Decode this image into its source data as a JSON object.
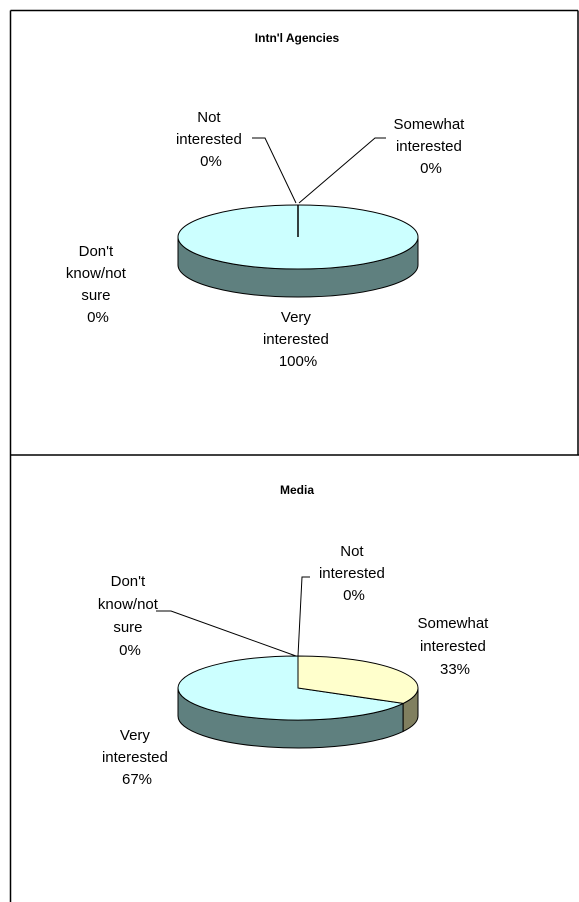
{
  "colors": {
    "very_top": "#CCFFFF",
    "very_side": "#5F807F",
    "somewhat_top": "#FFFFCC",
    "somewhat_side": "#807F5F",
    "outline": "#000000",
    "frame": "#000000"
  },
  "chart_data": [
    {
      "type": "pie",
      "style": "3d",
      "title": "Intn'l Agencies",
      "slices": [
        {
          "label": [
            "Very",
            "interested",
            "100%"
          ],
          "name": "Very interested",
          "value": 100
        },
        {
          "label": [
            "Somewhat",
            "interested",
            "0%"
          ],
          "name": "Somewhat interested",
          "value": 0
        },
        {
          "label": [
            "Not",
            "interested",
            "0%"
          ],
          "name": "Not interested",
          "value": 0
        },
        {
          "label": [
            "Don't",
            "know/not",
            "sure",
            "0%"
          ],
          "name": "Don't know/not sure",
          "value": 0
        }
      ]
    },
    {
      "type": "pie",
      "style": "3d",
      "title": "Media",
      "slices": [
        {
          "label": [
            "Somewhat",
            "interested",
            "33%"
          ],
          "name": "Somewhat interested",
          "value": 33
        },
        {
          "label": [
            "Very",
            "interested",
            "67%"
          ],
          "name": "Very interested",
          "value": 67
        },
        {
          "label": [
            "Not",
            "interested",
            "0%"
          ],
          "name": "Not interested",
          "value": 0
        },
        {
          "label": [
            "Don't",
            "know/not",
            "sure",
            "0%"
          ],
          "name": "Don't know/not sure",
          "value": 0
        }
      ]
    }
  ]
}
